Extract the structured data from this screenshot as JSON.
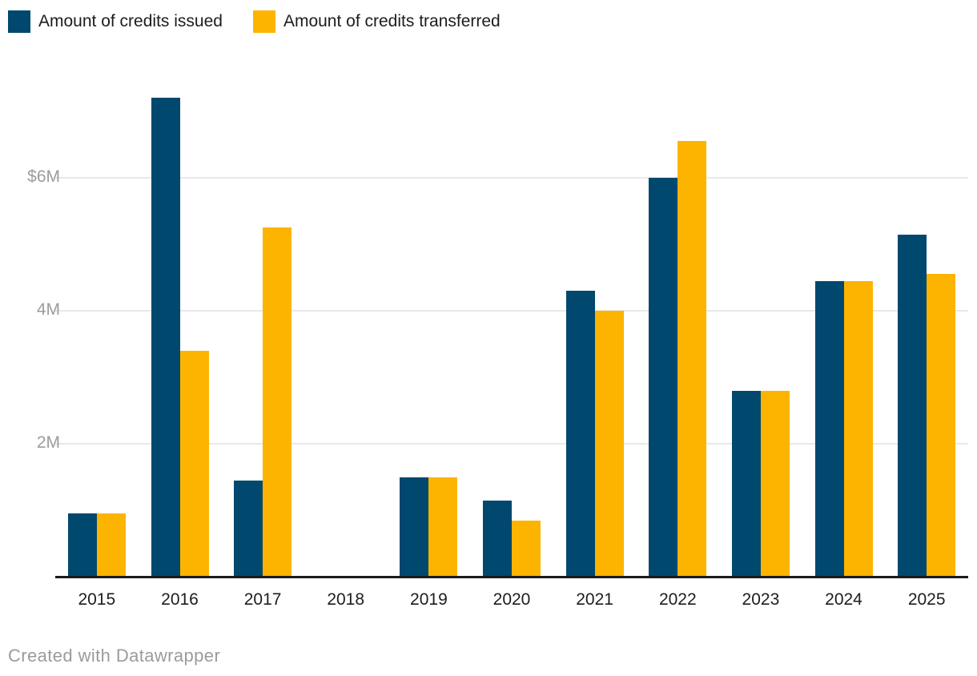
{
  "chart_data": {
    "type": "bar",
    "categories": [
      "2015",
      "2016",
      "2017",
      "2018",
      "2019",
      "2020",
      "2021",
      "2022",
      "2023",
      "2024",
      "2025"
    ],
    "series": [
      {
        "name": "Amount of credits issued",
        "color": "#00486e",
        "values": [
          0.95,
          7.2,
          1.45,
          0,
          1.5,
          1.15,
          4.3,
          6.0,
          2.8,
          4.45,
          5.15
        ]
      },
      {
        "name": "Amount of credits transferred",
        "color": "#fdb400",
        "values": [
          0.95,
          3.4,
          5.25,
          0,
          1.5,
          0.85,
          4.0,
          6.55,
          2.8,
          4.45,
          4.55
        ]
      }
    ],
    "title": "",
    "xlabel": "",
    "ylabel": "",
    "ylim": [
      0,
      7.95
    ],
    "y_ticks": [
      {
        "label": "$6M",
        "value": 6
      },
      {
        "label": "4M",
        "value": 4
      },
      {
        "label": "2M",
        "value": 2
      }
    ],
    "grid": "horizontal",
    "legend_position": "top-left"
  },
  "legend": {
    "items": [
      {
        "label": "Amount of credits issued",
        "color": "#00486e"
      },
      {
        "label": "Amount of credits transferred",
        "color": "#fdb400"
      }
    ]
  },
  "footer": {
    "credit": "Created with Datawrapper"
  },
  "colors": {
    "issued": "#00486e",
    "transferred": "#fdb400",
    "gridline": "#e8e8e8",
    "axis_line": "#1a1a1a",
    "tick_text": "#9c9c9c",
    "label_text": "#1d1d1d"
  }
}
